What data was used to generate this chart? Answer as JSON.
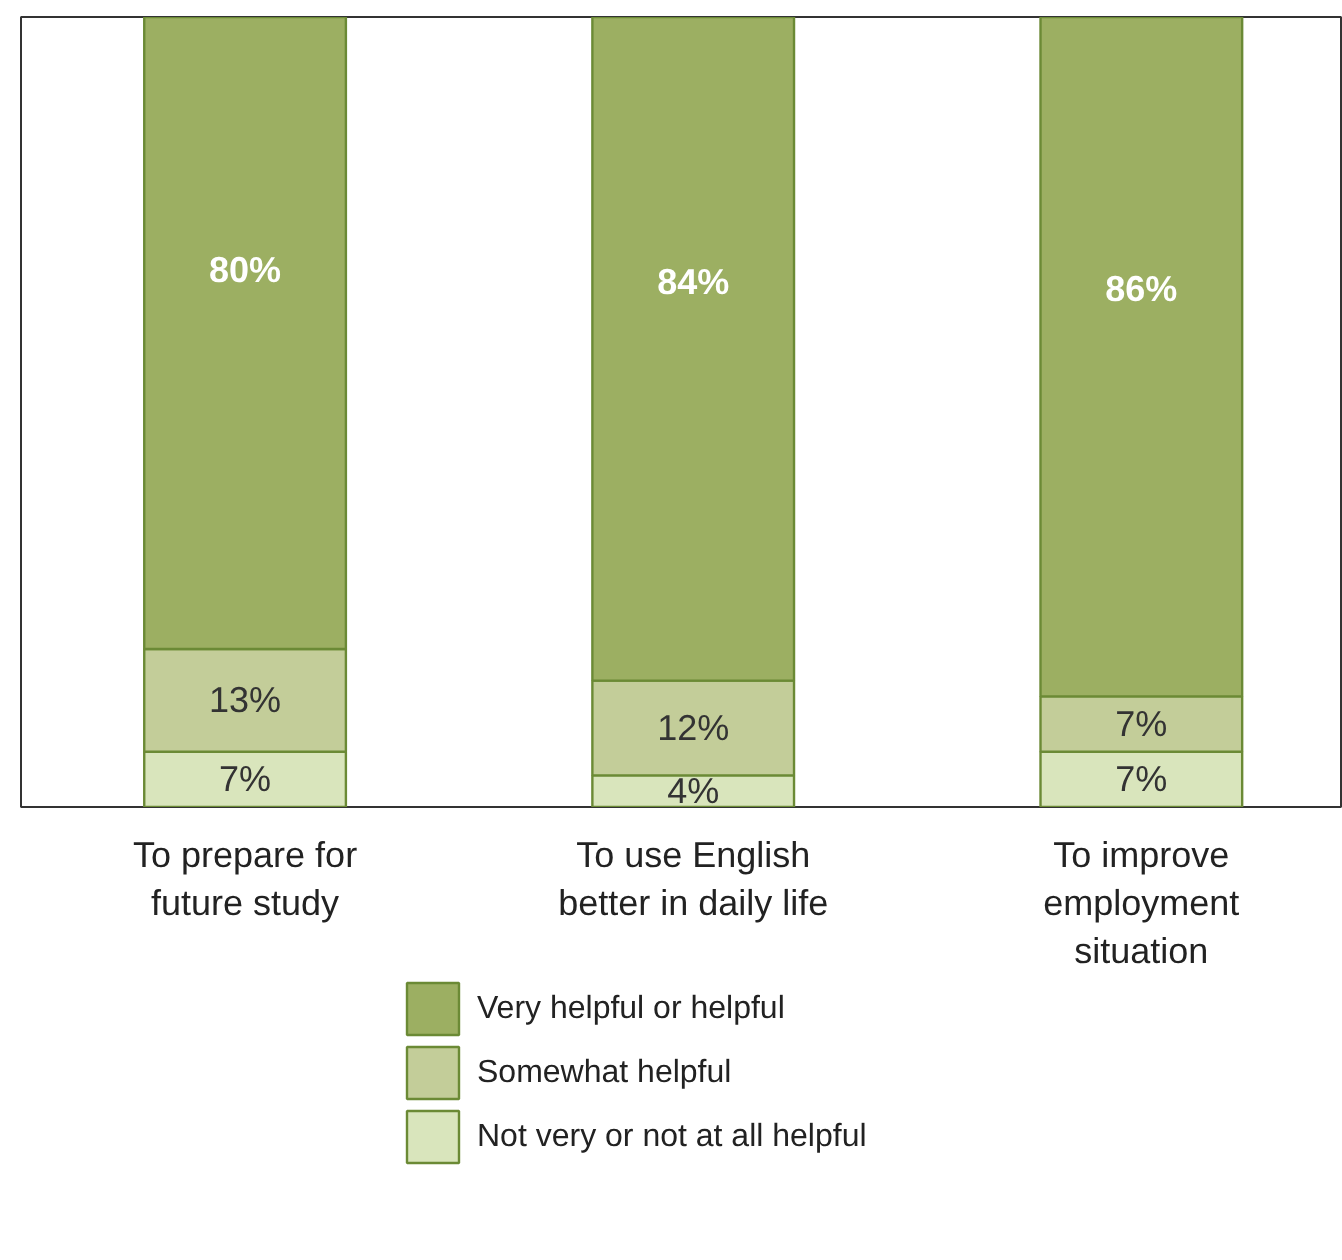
{
  "chart_data": {
    "type": "bar",
    "stacked": true,
    "categories": [
      "To prepare for\nfuture study",
      "To use English\nbetter in daily life",
      "To improve\nemployment\nsituation"
    ],
    "series": [
      {
        "name": "Not very or not at all helpful",
        "color": "#d9e5bc",
        "values": [
          7,
          4,
          7
        ],
        "value_labels": [
          "7%",
          "4%",
          "7%"
        ]
      },
      {
        "name": "Somewhat helpful",
        "color": "#c3cd99",
        "values": [
          13,
          12,
          7
        ],
        "value_labels": [
          "13%",
          "12%",
          "7%"
        ]
      },
      {
        "name": "Very helpful or helpful",
        "color": "#9caf62",
        "values": [
          80,
          84,
          86
        ],
        "value_labels": [
          "80%",
          "84%",
          "86%"
        ]
      }
    ],
    "tick_labels": "x",
    "legend": "bottom",
    "grid": false
  }
}
